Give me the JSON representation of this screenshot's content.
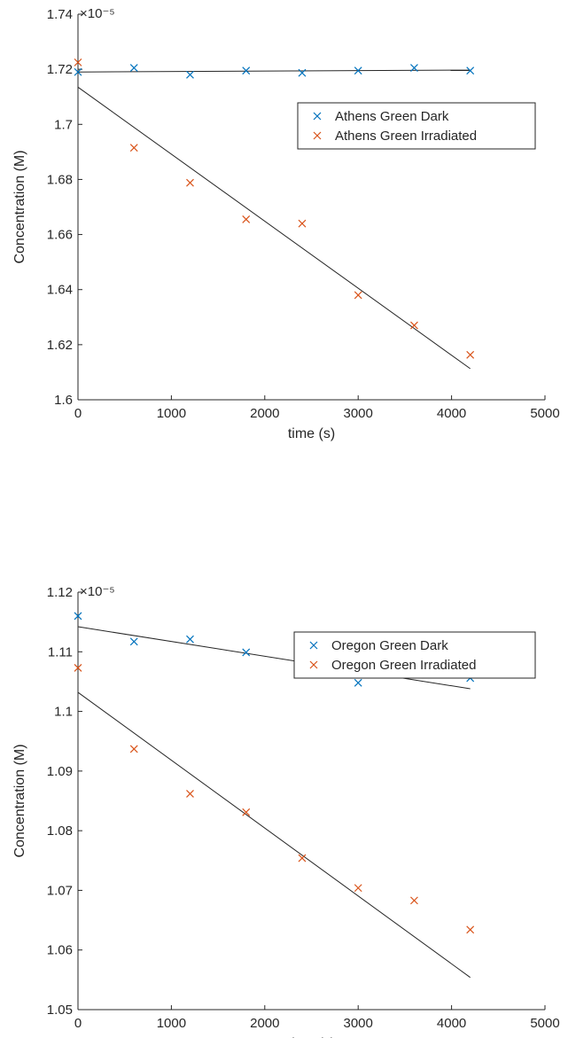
{
  "chart_data": [
    {
      "type": "scatter",
      "xlabel": "time (s)",
      "ylabel": "Concentration (M)",
      "y_exponent": "×10⁻⁵",
      "xlim": [
        0,
        5000
      ],
      "ylim": [
        1.6,
        1.74
      ],
      "x_ticks": [
        0,
        1000,
        2000,
        3000,
        4000,
        5000
      ],
      "y_ticks": [
        1.6,
        1.62,
        1.64,
        1.66,
        1.68,
        1.7,
        1.72,
        1.74
      ],
      "x_tick_labels": [
        "0",
        "1000",
        "2000",
        "3000",
        "4000",
        "5000"
      ],
      "y_tick_labels": [
        "1.6",
        "1.62",
        "1.64",
        "1.66",
        "1.68",
        "1.7",
        "1.72",
        "1.74"
      ],
      "grid": false,
      "legend_position": "top-right",
      "series": [
        {
          "name": "Athens Green Dark",
          "color": "#0072BD",
          "marker": "x",
          "x": [
            0,
            600,
            1200,
            1800,
            2400,
            3000,
            3600,
            4200
          ],
          "y": [
            1.719,
            1.7205,
            1.718,
            1.7195,
            1.7187,
            1.7195,
            1.7205,
            1.7195
          ],
          "fit": [
            [
              0,
              1.719
            ],
            [
              4200,
              1.7197
            ]
          ]
        },
        {
          "name": "Athens Green Irradiated",
          "color": "#D95319",
          "marker": "x",
          "x": [
            0,
            600,
            1200,
            1800,
            2400,
            3000,
            3600,
            4200
          ],
          "y": [
            1.7225,
            1.6915,
            1.6788,
            1.6655,
            1.664,
            1.638,
            1.627,
            1.6163
          ],
          "fit": [
            [
              0,
              1.7135
            ],
            [
              4200,
              1.6113
            ]
          ]
        }
      ]
    },
    {
      "type": "scatter",
      "xlabel": "time (s)",
      "ylabel": "Concentration (M)",
      "y_exponent": "×10⁻⁵",
      "xlim": [
        0,
        5000
      ],
      "ylim": [
        1.05,
        1.12
      ],
      "x_ticks": [
        0,
        1000,
        2000,
        3000,
        4000,
        5000
      ],
      "y_ticks": [
        1.05,
        1.06,
        1.07,
        1.08,
        1.09,
        1.1,
        1.11,
        1.12
      ],
      "x_tick_labels": [
        "0",
        "1000",
        "2000",
        "3000",
        "4000",
        "5000"
      ],
      "y_tick_labels": [
        "1.05",
        "1.06",
        "1.07",
        "1.08",
        "1.09",
        "1.1",
        "1.11",
        "1.12"
      ],
      "grid": false,
      "legend_position": "top-right",
      "series": [
        {
          "name": "Oregon Green Dark",
          "color": "#0072BD",
          "marker": "x",
          "x": [
            0,
            600,
            1200,
            1800,
            2400,
            3000,
            3600,
            4200
          ],
          "y": [
            1.116,
            1.1117,
            1.1121,
            1.1099,
            1.1062,
            1.1048,
            1.1064,
            1.1056
          ],
          "fit": [
            [
              0,
              1.1142
            ],
            [
              4200,
              1.1038
            ]
          ]
        },
        {
          "name": "Oregon Green Irradiated",
          "color": "#D95319",
          "marker": "x",
          "x": [
            0,
            600,
            1200,
            1800,
            2400,
            3000,
            3600,
            4200
          ],
          "y": [
            1.1073,
            1.0937,
            1.0862,
            1.0831,
            1.0754,
            1.0704,
            1.0683,
            1.0634
          ],
          "fit": [
            [
              0,
              1.1032
            ],
            [
              4200,
              1.0554
            ]
          ]
        }
      ]
    }
  ]
}
